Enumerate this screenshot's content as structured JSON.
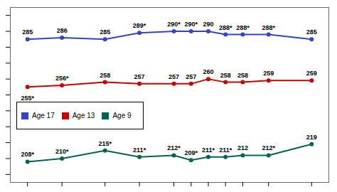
{
  "chart_data": {
    "type": "line",
    "x": [
      1971,
      1975,
      1980,
      1984,
      1988,
      1990,
      1992,
      1994,
      1996,
      1999,
      2004
    ],
    "series": [
      {
        "name": "Age 17",
        "color": "#3344cc",
        "values": [
          285,
          286,
          285,
          289,
          290,
          290,
          290,
          288,
          288,
          288,
          285
        ],
        "value_labels": [
          "285",
          "286",
          "285",
          "289*",
          "290*",
          "290*",
          "290",
          "288*",
          "288*",
          "288*",
          "285"
        ]
      },
      {
        "name": "Age 13",
        "color": "#cc0000",
        "values": [
          255,
          256,
          258,
          257,
          257,
          257,
          260,
          258,
          258,
          259,
          259
        ],
        "value_labels": [
          "255*",
          "256*",
          "258",
          "257",
          "257",
          "257",
          "260",
          "258",
          "258",
          "259",
          "259"
        ]
      },
      {
        "name": "Age 9",
        "color": "#006655",
        "values": [
          208,
          210,
          215,
          211,
          212,
          209,
          211,
          211,
          212,
          212,
          219
        ],
        "value_labels": [
          "208*",
          "210*",
          "215*",
          "211*",
          "212*",
          "209*",
          "211*",
          "211*",
          "212",
          "212*",
          "219"
        ]
      }
    ],
    "xlim": [
      1969,
      2006
    ],
    "xticks": [
      1971,
      1975,
      1980,
      1984,
      1988,
      1990,
      1992,
      1994,
      1996,
      1999,
      2004
    ],
    "ylim": [
      195,
      305
    ],
    "yticks": [
      200,
      210,
      220,
      230,
      240,
      250,
      260,
      270,
      280,
      290,
      300
    ],
    "grid": false,
    "legend": "lower left",
    "marker": "circle",
    "data_labels": true,
    "tick_labels": false
  }
}
